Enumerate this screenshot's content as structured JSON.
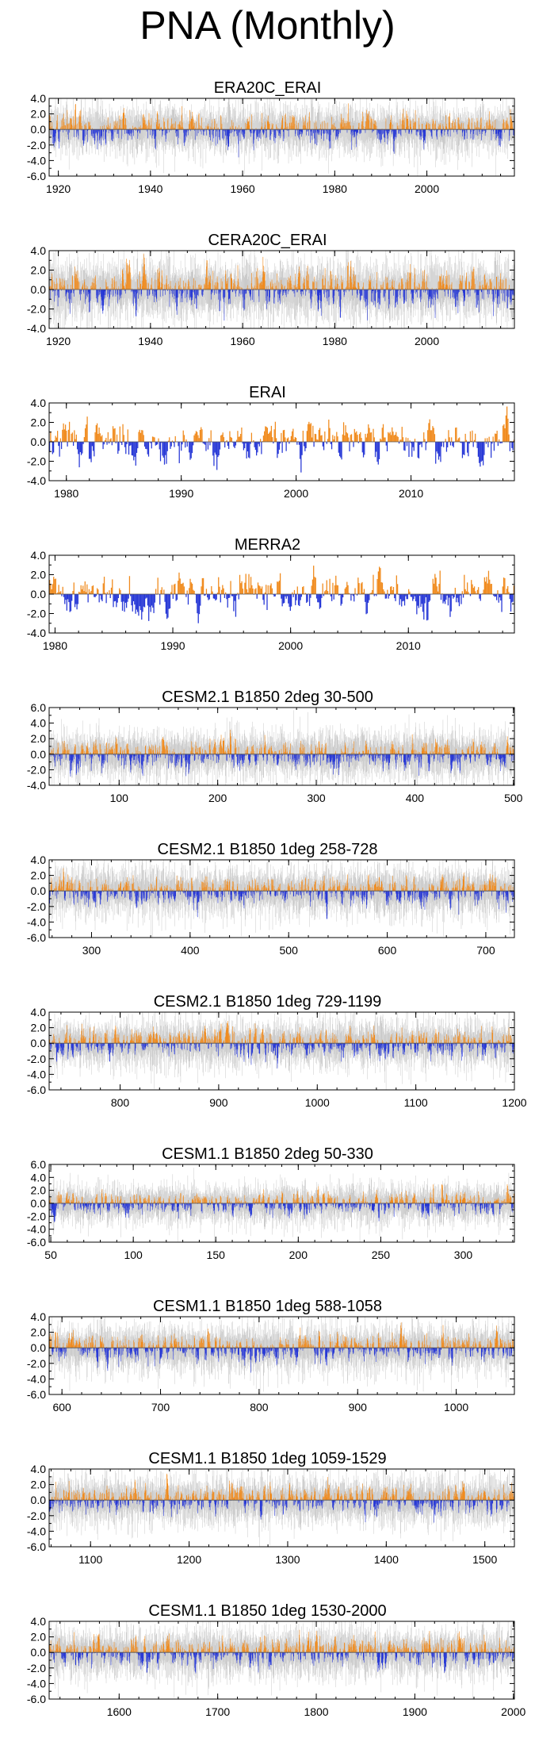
{
  "title": "PNA (Monthly)",
  "colors": {
    "positive": "#f08a1c",
    "negative": "#2637d6",
    "ensemble": "#c9c9c9",
    "axis": "#000000"
  },
  "chart_data": [
    {
      "type": "bar",
      "title": "ERA20C_ERAI",
      "x_range": [
        1918,
        2019
      ],
      "ylim": [
        -6,
        4
      ],
      "yticks": [
        "4.0",
        "2.0",
        "0.0",
        "-2.0",
        "-4.0",
        "-6.0"
      ],
      "yticks_values": [
        4,
        2,
        0,
        -2,
        -4,
        -6
      ],
      "xticks": [
        1920,
        1940,
        1960,
        1980,
        2000
      ],
      "xticks_labels": [
        "1920",
        "1940",
        "1960",
        "1980",
        "2000"
      ],
      "n_points": 1200,
      "amplitude": 1.0,
      "ensemble_spread": true,
      "seed": 11
    },
    {
      "type": "bar",
      "title": "CERA20C_ERAI",
      "x_range": [
        1918,
        2019
      ],
      "ylim": [
        -4,
        4
      ],
      "yticks": [
        "4.0",
        "2.0",
        "0.0",
        "-2.0",
        "-4.0"
      ],
      "yticks_values": [
        4,
        2,
        0,
        -2,
        -4
      ],
      "xticks": [
        1920,
        1940,
        1960,
        1980,
        2000
      ],
      "xticks_labels": [
        "1920",
        "1940",
        "1960",
        "1980",
        "2000"
      ],
      "n_points": 1200,
      "amplitude": 1.0,
      "ensemble_spread": true,
      "seed": 23
    },
    {
      "type": "bar",
      "title": "ERAI",
      "x_range": [
        1978.5,
        2019
      ],
      "ylim": [
        -4,
        4
      ],
      "yticks": [
        "4.0",
        "2.0",
        "0.0",
        "-2.0",
        "-4.0"
      ],
      "yticks_values": [
        4,
        2,
        0,
        -2,
        -4
      ],
      "xticks": [
        1980,
        1990,
        2000,
        2010
      ],
      "xticks_labels": [
        "1980",
        "1990",
        "2000",
        "2010"
      ],
      "n_points": 470,
      "amplitude": 1.1,
      "ensemble_spread": false,
      "seed": 37
    },
    {
      "type": "bar",
      "title": "MERRA2",
      "x_range": [
        1979.5,
        2019
      ],
      "ylim": [
        -4,
        4
      ],
      "yticks": [
        "4.0",
        "2.0",
        "0.0",
        "-2.0",
        "-4.0"
      ],
      "yticks_values": [
        4,
        2,
        0,
        -2,
        -4
      ],
      "xticks": [
        1980,
        1990,
        2000,
        2010
      ],
      "xticks_labels": [
        "1980",
        "1990",
        "2000",
        "2010"
      ],
      "n_points": 460,
      "amplitude": 1.1,
      "ensemble_spread": false,
      "seed": 41
    },
    {
      "type": "bar",
      "title": "CESM2.1 B1850 2deg 30-500",
      "x_range": [
        29,
        501
      ],
      "ylim": [
        -4,
        6
      ],
      "yticks": [
        "6.0",
        "4.0",
        "2.0",
        "0.0",
        "-2.0",
        "-4.0"
      ],
      "yticks_values": [
        6,
        4,
        2,
        0,
        -2,
        -4
      ],
      "xticks": [
        100,
        200,
        300,
        400,
        500
      ],
      "xticks_labels": [
        "100",
        "200",
        "300",
        "400",
        "500"
      ],
      "n_points": 1300,
      "amplitude": 0.9,
      "ensemble_spread": true,
      "seed": 53
    },
    {
      "type": "bar",
      "title": "CESM2.1 B1850 1deg 258-728",
      "x_range": [
        257,
        729
      ],
      "ylim": [
        -6,
        4
      ],
      "yticks": [
        "4.0",
        "2.0",
        "0.0",
        "-2.0",
        "-4.0",
        "-6.0"
      ],
      "yticks_values": [
        4,
        2,
        0,
        -2,
        -4,
        -6
      ],
      "xticks": [
        300,
        400,
        500,
        600,
        700
      ],
      "xticks_labels": [
        "300",
        "400",
        "500",
        "600",
        "700"
      ],
      "n_points": 1300,
      "amplitude": 0.9,
      "ensemble_spread": true,
      "seed": 67
    },
    {
      "type": "bar",
      "title": "CESM2.1 B1850 1deg 729-1199",
      "x_range": [
        728,
        1200
      ],
      "ylim": [
        -6,
        4
      ],
      "yticks": [
        "4.0",
        "2.0",
        "0.0",
        "-2.0",
        "-4.0",
        "-6.0"
      ],
      "yticks_values": [
        4,
        2,
        0,
        -2,
        -4,
        -6
      ],
      "xticks": [
        800,
        900,
        1000,
        1100,
        1200
      ],
      "xticks_labels": [
        "800",
        "900",
        "1000",
        "1100",
        "1200"
      ],
      "n_points": 1300,
      "amplitude": 0.9,
      "ensemble_spread": true,
      "seed": 71
    },
    {
      "type": "bar",
      "title": "CESM1.1 B1850 2deg 50-330",
      "x_range": [
        49,
        331
      ],
      "ylim": [
        -6,
        6
      ],
      "yticks": [
        "6.0",
        "4.0",
        "2.0",
        "0.0",
        "-2.0",
        "-4.0",
        "-6.0"
      ],
      "yticks_values": [
        6,
        4,
        2,
        0,
        -2,
        -4,
        -6
      ],
      "xticks": [
        50,
        100,
        150,
        200,
        250,
        300
      ],
      "xticks_labels": [
        "50",
        "100",
        "150",
        "200",
        "250",
        "300"
      ],
      "n_points": 1200,
      "amplitude": 0.9,
      "ensemble_spread": true,
      "seed": 83
    },
    {
      "type": "bar",
      "title": "CESM1.1 B1850 1deg 588-1058",
      "x_range": [
        587,
        1059
      ],
      "ylim": [
        -6,
        4
      ],
      "yticks": [
        "4.0",
        "2.0",
        "0.0",
        "-2.0",
        "-4.0",
        "-6.0"
      ],
      "yticks_values": [
        4,
        2,
        0,
        -2,
        -4,
        -6
      ],
      "xticks": [
        600,
        700,
        800,
        900,
        1000
      ],
      "xticks_labels": [
        "600",
        "700",
        "800",
        "900",
        "1000"
      ],
      "n_points": 1300,
      "amplitude": 0.9,
      "ensemble_spread": true,
      "seed": 97
    },
    {
      "type": "bar",
      "title": "CESM1.1 B1850 1deg 1059-1529",
      "x_range": [
        1058,
        1530
      ],
      "ylim": [
        -6,
        4
      ],
      "yticks": [
        "4.0",
        "2.0",
        "0.0",
        "-2.0",
        "-4.0",
        "-6.0"
      ],
      "yticks_values": [
        4,
        2,
        0,
        -2,
        -4,
        -6
      ],
      "xticks": [
        1100,
        1200,
        1300,
        1400,
        1500
      ],
      "xticks_labels": [
        "1100",
        "1200",
        "1300",
        "1400",
        "1500"
      ],
      "n_points": 1300,
      "amplitude": 0.9,
      "ensemble_spread": true,
      "seed": 101
    },
    {
      "type": "bar",
      "title": "CESM1.1 B1850 1deg 1530-2000",
      "x_range": [
        1529,
        2001
      ],
      "ylim": [
        -6,
        4
      ],
      "yticks": [
        "4.0",
        "2.0",
        "0.0",
        "-2.0",
        "-4.0",
        "-6.0"
      ],
      "yticks_values": [
        4,
        2,
        0,
        -2,
        -4,
        -6
      ],
      "xticks": [
        1600,
        1700,
        1800,
        1900,
        2000
      ],
      "xticks_labels": [
        "1600",
        "1700",
        "1800",
        "1900",
        "2000"
      ],
      "n_points": 1300,
      "amplitude": 0.9,
      "ensemble_spread": true,
      "seed": 113
    }
  ]
}
